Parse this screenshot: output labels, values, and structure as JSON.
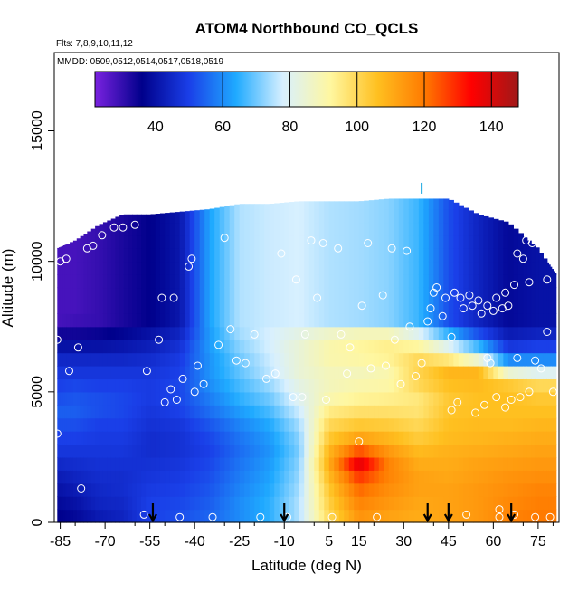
{
  "chart_data": {
    "type": "heatmap",
    "title": "ATOM4 Northbound CO_QCLS",
    "subtitle_flights": "Flts: 7,8,9,10,11,12",
    "subtitle_dates": "MMDD: 0509,0512,0514,0517,0518,0519",
    "xlabel": "Latitude (deg N)",
    "ylabel": "Altitude (m)",
    "xlim": [
      -87,
      82
    ],
    "ylim": [
      0,
      18000
    ],
    "x_ticks": [
      -85,
      -70,
      -55,
      -40,
      -25,
      -10,
      5,
      15,
      30,
      45,
      60,
      75
    ],
    "x_tick_labels": [
      "-85",
      "-70",
      "-55",
      "-40",
      "-25",
      "-10",
      "5",
      "15",
      "30",
      "45",
      "60",
      "75"
    ],
    "y_ticks": [
      0,
      5000,
      10000,
      15000
    ],
    "y_tick_labels": [
      "0",
      "5000",
      "10000",
      "15000"
    ],
    "colorbar": {
      "range": [
        22,
        148
      ],
      "ticks": [
        40,
        60,
        80,
        100,
        120,
        140
      ],
      "tick_labels": [
        "40",
        "60",
        "80",
        "100",
        "120",
        "140"
      ],
      "colors": [
        "#7a22e0",
        "#00008b",
        "#1a3fe8",
        "#1faaff",
        "#d8f0ff",
        "#fff7a0",
        "#ffc020",
        "#ff7a00",
        "#ff0000",
        "#a01818"
      ]
    },
    "field_columns": [
      {
        "lat": -86,
        "top": 10500,
        "vals": [
          36,
          38,
          40,
          42,
          45,
          48,
          50,
          52,
          54,
          52,
          50,
          48,
          45,
          40,
          34,
          28,
          28,
          28,
          28,
          28,
          28,
          28,
          28,
          28,
          28
        ]
      },
      {
        "lat": -80,
        "top": 10800,
        "vals": [
          38,
          40,
          42,
          44,
          46,
          48,
          50,
          52,
          54,
          53,
          51,
          48,
          45,
          40,
          34,
          29,
          28,
          28,
          28,
          28,
          28,
          28,
          28,
          28,
          28
        ]
      },
      {
        "lat": -72,
        "top": 11400,
        "vals": [
          42,
          44,
          45,
          46,
          47,
          48,
          49,
          50,
          52,
          52,
          50,
          48,
          45,
          40,
          35,
          30,
          30,
          30,
          30,
          30,
          30,
          30,
          30,
          30,
          30
        ]
      },
      {
        "lat": -64,
        "top": 11800,
        "vals": [
          44,
          45,
          46,
          46,
          47,
          48,
          49,
          50,
          51,
          51,
          50,
          48,
          45,
          41,
          37,
          33,
          33,
          33,
          33,
          33,
          33,
          33,
          33,
          33,
          33
        ]
      },
      {
        "lat": -55,
        "top": 11800,
        "vals": [
          50,
          50,
          49,
          48,
          47,
          46,
          46,
          47,
          48,
          49,
          49,
          48,
          46,
          43,
          40,
          36,
          36,
          36,
          36,
          36,
          36,
          36,
          36,
          36,
          36
        ]
      },
      {
        "lat": -45,
        "top": 11900,
        "vals": [
          52,
          51,
          50,
          49,
          48,
          47,
          47,
          48,
          50,
          51,
          51,
          50,
          49,
          47,
          44,
          41,
          41,
          41,
          41,
          41,
          41,
          41,
          41,
          41,
          41
        ]
      },
      {
        "lat": -35,
        "top": 12000,
        "vals": [
          55,
          54,
          53,
          52,
          51,
          50,
          51,
          53,
          56,
          58,
          60,
          61,
          61,
          62,
          62,
          63,
          63,
          63,
          63,
          63,
          63,
          63,
          63,
          63,
          63
        ]
      },
      {
        "lat": -25,
        "top": 12200,
        "vals": [
          60,
          60,
          59,
          58,
          57,
          56,
          57,
          59,
          62,
          65,
          67,
          69,
          70,
          72,
          74,
          75,
          75,
          75,
          75,
          75,
          75,
          75,
          75,
          75,
          75
        ]
      },
      {
        "lat": -15,
        "top": 12200,
        "vals": [
          65,
          65,
          64,
          63,
          62,
          61,
          62,
          64,
          67,
          70,
          73,
          76,
          77,
          78,
          78,
          77,
          77,
          77,
          77,
          77,
          77,
          77,
          77,
          77,
          77
        ]
      },
      {
        "lat": -5,
        "top": 12300,
        "vals": [
          75,
          75,
          74,
          73,
          72,
          71,
          72,
          74,
          77,
          80,
          82,
          84,
          84,
          84,
          82,
          78,
          78,
          78,
          78,
          78,
          78,
          78,
          78,
          78,
          78
        ]
      },
      {
        "lat": 5,
        "top": 12300,
        "vals": [
          100,
          102,
          104,
          107,
          110,
          108,
          104,
          100,
          95,
          90,
          88,
          88,
          90,
          90,
          86,
          75,
          75,
          75,
          75,
          75,
          75,
          75,
          75,
          75,
          75
        ]
      },
      {
        "lat": 15,
        "top": 12300,
        "vals": [
          115,
          118,
          122,
          128,
          138,
          125,
          112,
          104,
          98,
          93,
          90,
          88,
          91,
          92,
          88,
          74,
          74,
          74,
          74,
          74,
          74,
          74,
          74,
          74,
          74
        ]
      },
      {
        "lat": 25,
        "top": 12400,
        "vals": [
          112,
          114,
          116,
          118,
          118,
          114,
          108,
          103,
          98,
          94,
          91,
          90,
          93,
          94,
          88,
          72,
          72,
          72,
          72,
          72,
          72,
          72,
          72,
          72,
          72
        ]
      },
      {
        "lat": 35,
        "top": 12400,
        "vals": [
          110,
          111,
          112,
          112,
          110,
          107,
          103,
          100,
          97,
          96,
          100,
          101,
          100,
          92,
          80,
          66,
          66,
          66,
          66,
          66,
          66,
          66,
          66,
          66,
          66
        ]
      },
      {
        "lat": 45,
        "top": 12400,
        "vals": [
          112,
          112,
          112,
          111,
          110,
          109,
          107,
          106,
          105,
          104,
          106,
          108,
          96,
          80,
          65,
          52,
          52,
          52,
          52,
          52,
          52,
          52,
          52,
          52,
          52
        ]
      },
      {
        "lat": 55,
        "top": 11800,
        "vals": [
          114,
          114,
          114,
          113,
          112,
          110,
          108,
          107,
          106,
          106,
          107,
          108,
          85,
          66,
          52,
          44,
          44,
          44,
          44,
          44,
          44,
          44,
          44,
          44,
          44
        ]
      },
      {
        "lat": 65,
        "top": 11500,
        "vals": [
          118,
          117,
          116,
          115,
          113,
          111,
          109,
          107,
          106,
          106,
          104,
          85,
          60,
          48,
          42,
          38,
          38,
          38,
          38,
          38,
          38,
          38,
          38,
          38,
          38
        ]
      },
      {
        "lat": 75,
        "top": 10500,
        "vals": [
          120,
          119,
          118,
          116,
          114,
          112,
          110,
          108,
          106,
          104,
          100,
          80,
          60,
          50,
          44,
          40,
          40,
          40,
          40,
          40,
          40,
          40,
          40,
          40,
          40
        ]
      },
      {
        "lat": 81,
        "top": 9500,
        "vals": [
          120,
          119,
          118,
          116,
          114,
          112,
          110,
          108,
          106,
          104,
          100,
          80,
          60,
          50,
          44,
          40,
          40,
          40,
          40,
          40,
          40,
          40,
          40,
          40,
          40
        ]
      }
    ],
    "observations": [
      {
        "x": -86,
        "y": 3400
      },
      {
        "x": -86,
        "y": 7000
      },
      {
        "x": -85,
        "y": 10000
      },
      {
        "x": -83,
        "y": 10100
      },
      {
        "x": -82,
        "y": 5800
      },
      {
        "x": -79,
        "y": 6700
      },
      {
        "x": -78,
        "y": 1300
      },
      {
        "x": -76,
        "y": 10500
      },
      {
        "x": -74,
        "y": 10600
      },
      {
        "x": -71,
        "y": 11000
      },
      {
        "x": -67,
        "y": 11300
      },
      {
        "x": -64,
        "y": 11300
      },
      {
        "x": -60,
        "y": 11400
      },
      {
        "x": -57,
        "y": 300
      },
      {
        "x": -56,
        "y": 5800
      },
      {
        "x": -52,
        "y": 7000
      },
      {
        "x": -51,
        "y": 8600
      },
      {
        "x": -50,
        "y": 4600
      },
      {
        "x": -48,
        "y": 5100
      },
      {
        "x": -47,
        "y": 8600
      },
      {
        "x": -46,
        "y": 4700
      },
      {
        "x": -45,
        "y": 200
      },
      {
        "x": -44,
        "y": 5500
      },
      {
        "x": -42,
        "y": 9800
      },
      {
        "x": -41,
        "y": 10100
      },
      {
        "x": -40,
        "y": 5000
      },
      {
        "x": -39,
        "y": 6000
      },
      {
        "x": -37,
        "y": 5300
      },
      {
        "x": -34,
        "y": 200
      },
      {
        "x": -32,
        "y": 6800
      },
      {
        "x": -30,
        "y": 10900
      },
      {
        "x": -28,
        "y": 7400
      },
      {
        "x": -26,
        "y": 6200
      },
      {
        "x": -23,
        "y": 6100
      },
      {
        "x": -20,
        "y": 7200
      },
      {
        "x": -18,
        "y": 200
      },
      {
        "x": -16,
        "y": 5500
      },
      {
        "x": -13,
        "y": 5700
      },
      {
        "x": -11,
        "y": 10300
      },
      {
        "x": -9,
        "y": 200
      },
      {
        "x": -7,
        "y": 4800
      },
      {
        "x": -6,
        "y": 9300
      },
      {
        "x": -4,
        "y": 4800
      },
      {
        "x": -3,
        "y": 7200
      },
      {
        "x": -1,
        "y": 10800
      },
      {
        "x": 1,
        "y": 8600
      },
      {
        "x": 3,
        "y": 10700
      },
      {
        "x": 4,
        "y": 4700
      },
      {
        "x": 6,
        "y": 200
      },
      {
        "x": 8,
        "y": 10500
      },
      {
        "x": 9,
        "y": 7200
      },
      {
        "x": 11,
        "y": 5700
      },
      {
        "x": 12,
        "y": 6700
      },
      {
        "x": 15,
        "y": 3100
      },
      {
        "x": 16,
        "y": 8300
      },
      {
        "x": 18,
        "y": 10700
      },
      {
        "x": 19,
        "y": 5900
      },
      {
        "x": 21,
        "y": 200
      },
      {
        "x": 23,
        "y": 8700
      },
      {
        "x": 24,
        "y": 6000
      },
      {
        "x": 26,
        "y": 10500
      },
      {
        "x": 27,
        "y": 7000
      },
      {
        "x": 29,
        "y": 5300
      },
      {
        "x": 31,
        "y": 10400
      },
      {
        "x": 32,
        "y": 7500
      },
      {
        "x": 34,
        "y": 5600
      },
      {
        "x": 36,
        "y": 6100
      },
      {
        "x": 38,
        "y": 7700
      },
      {
        "x": 39,
        "y": 8200
      },
      {
        "x": 40,
        "y": 8800
      },
      {
        "x": 41,
        "y": 9000
      },
      {
        "x": 43,
        "y": 7900
      },
      {
        "x": 44,
        "y": 8600
      },
      {
        "x": 46,
        "y": 4300
      },
      {
        "x": 46,
        "y": 7100
      },
      {
        "x": 47,
        "y": 8800
      },
      {
        "x": 48,
        "y": 4600
      },
      {
        "x": 49,
        "y": 8600
      },
      {
        "x": 50,
        "y": 8200
      },
      {
        "x": 51,
        "y": 300
      },
      {
        "x": 52,
        "y": 8700
      },
      {
        "x": 53,
        "y": 8300
      },
      {
        "x": 54,
        "y": 4200
      },
      {
        "x": 55,
        "y": 8500
      },
      {
        "x": 56,
        "y": 8000
      },
      {
        "x": 57,
        "y": 4500
      },
      {
        "x": 58,
        "y": 6300
      },
      {
        "x": 58,
        "y": 8300
      },
      {
        "x": 59,
        "y": 6100
      },
      {
        "x": 60,
        "y": 8100
      },
      {
        "x": 61,
        "y": 4800
      },
      {
        "x": 61,
        "y": 8600
      },
      {
        "x": 62,
        "y": 500
      },
      {
        "x": 62,
        "y": 200
      },
      {
        "x": 63,
        "y": 8200
      },
      {
        "x": 64,
        "y": 4400
      },
      {
        "x": 64,
        "y": 8800
      },
      {
        "x": 65,
        "y": 8300
      },
      {
        "x": 66,
        "y": 4700
      },
      {
        "x": 67,
        "y": 300
      },
      {
        "x": 67,
        "y": 9100
      },
      {
        "x": 68,
        "y": 6300
      },
      {
        "x": 68,
        "y": 10300
      },
      {
        "x": 69,
        "y": 4800
      },
      {
        "x": 70,
        "y": 10100
      },
      {
        "x": 71,
        "y": 10800
      },
      {
        "x": 72,
        "y": 5000
      },
      {
        "x": 72,
        "y": 9200
      },
      {
        "x": 73,
        "y": 10700
      },
      {
        "x": 74,
        "y": 200
      },
      {
        "x": 74,
        "y": 6200
      },
      {
        "x": 76,
        "y": 5900
      },
      {
        "x": 78,
        "y": 7300
      },
      {
        "x": 78,
        "y": 9300
      },
      {
        "x": 79,
        "y": 200
      },
      {
        "x": 80,
        "y": 5000
      }
    ],
    "bottom_arrows_lat": [
      -54,
      -10,
      38,
      45,
      66
    ],
    "top_marker": {
      "lat": 36,
      "alt": 12800
    }
  }
}
